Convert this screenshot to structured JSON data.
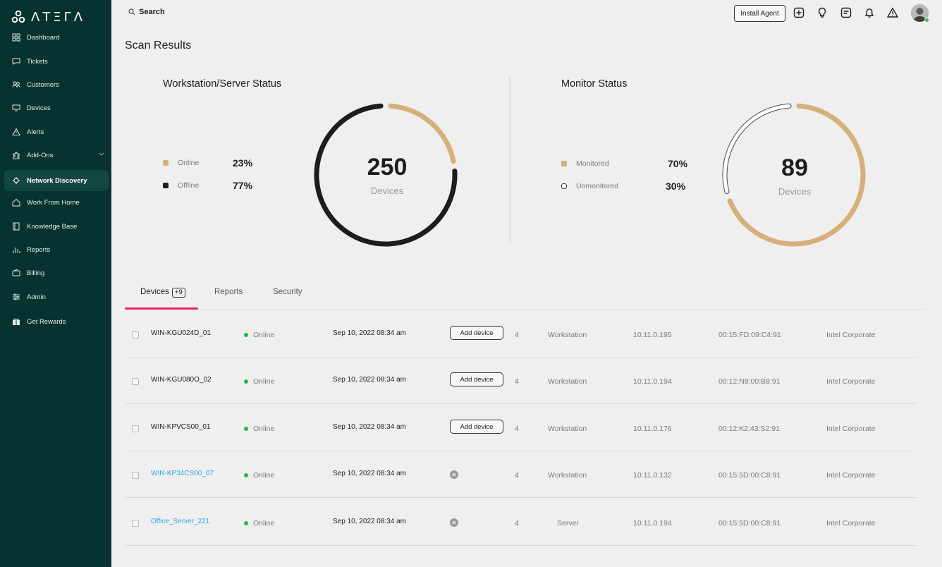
{
  "brand": {
    "logo_text": "ΛΤΞΓΛ",
    "icon": "atera-logo-icon"
  },
  "sidebar": {
    "items": [
      {
        "label": "Dashboard",
        "icon": "dashboard-icon"
      },
      {
        "label": "Tickets",
        "icon": "tickets-icon"
      },
      {
        "label": "Customers",
        "icon": "customers-icon"
      },
      {
        "label": "Devices",
        "icon": "devices-icon"
      },
      {
        "label": "Alerts",
        "icon": "alerts-icon"
      },
      {
        "label": "Add-Ons",
        "icon": "addons-icon"
      },
      {
        "label": "Network Discovery",
        "icon": "network-discovery-icon"
      },
      {
        "label": "Work From Home",
        "icon": "home-icon"
      },
      {
        "label": "Knowledge Base",
        "icon": "knowledge-base-icon"
      },
      {
        "label": "Reports",
        "icon": "reports-icon"
      },
      {
        "label": "Billing",
        "icon": "billing-icon"
      },
      {
        "label": "Admin",
        "icon": "admin-icon"
      },
      {
        "label": "Get Rewards",
        "icon": "gift-icon"
      }
    ],
    "active": "Network Discovery"
  },
  "topbar": {
    "search_label": "Search",
    "install_label": "Install Agent"
  },
  "page": {
    "title": "Scan Results"
  },
  "workstation_status": {
    "title": "Workstation/Server Status",
    "legend": [
      {
        "label": "Online",
        "pct": "23%",
        "fraction": 0.23,
        "color": "#d6b07a"
      },
      {
        "label": "Offline",
        "pct": "77%",
        "fraction": 0.77,
        "color": "#1d1d1d"
      }
    ],
    "total": "250",
    "total_label": "Devices"
  },
  "monitor_status": {
    "title": "Monitor Status",
    "legend": [
      {
        "label": "Monitored",
        "pct": "70%",
        "fraction": 0.7,
        "color": "#d6b07a"
      },
      {
        "label": "Unmonitored",
        "pct": "30%",
        "fraction": 0.3,
        "color": "#ffffff"
      }
    ],
    "total": "89",
    "total_label": "Devices"
  },
  "tabs": [
    {
      "label": "Devices",
      "badge": "+9"
    },
    {
      "label": "Reports"
    },
    {
      "label": "Security"
    }
  ],
  "devices": [
    {
      "name": "WIN-KGU024D_01",
      "status": "Online",
      "date": "Sep 10, 2022 08:34 am",
      "action": "Add device",
      "count": "4",
      "type": "Workstation",
      "ip": "10.11.0.195",
      "mac": "00:15:FD:09:C4:91",
      "vendor": "Intel Corporate",
      "linked": false
    },
    {
      "name": "WIN-KGU080O_02",
      "status": "Online",
      "date": "Sep 10, 2022 08:34 am",
      "action": "Add device",
      "count": "4",
      "type": "Workstation",
      "ip": "10.11.0.194",
      "mac": "00:12:N8:00:B8:91",
      "vendor": "Intel Corporate",
      "linked": false
    },
    {
      "name": "WIN-KPVCS00_01",
      "status": "Online",
      "date": "Sep 10, 2022 08:34 am",
      "action": "Add device",
      "count": "4",
      "type": "Workstation",
      "ip": "10.11.0.176",
      "mac": "00:12:K2:43:S2:91",
      "vendor": "Intel Corporate",
      "linked": false
    },
    {
      "name": "WIN-KP34CS00_07",
      "status": "Online",
      "date": "Sep 10, 2022 08:34 am",
      "action": "",
      "count": "4",
      "type": "Workstation",
      "ip": "10.11.0.132",
      "mac": "00:15:5D:00:C8:91",
      "vendor": "Intel Corporate",
      "linked": true
    },
    {
      "name": "Office_Server_221",
      "status": "Online",
      "date": "Sep 10, 2022 08:34 am",
      "action": "",
      "count": "4",
      "type": "Server",
      "ip": "10.11.0.194",
      "mac": "00:15:5D:00:C8:91",
      "vendor": "Intel Corporate",
      "linked": true
    }
  ]
}
